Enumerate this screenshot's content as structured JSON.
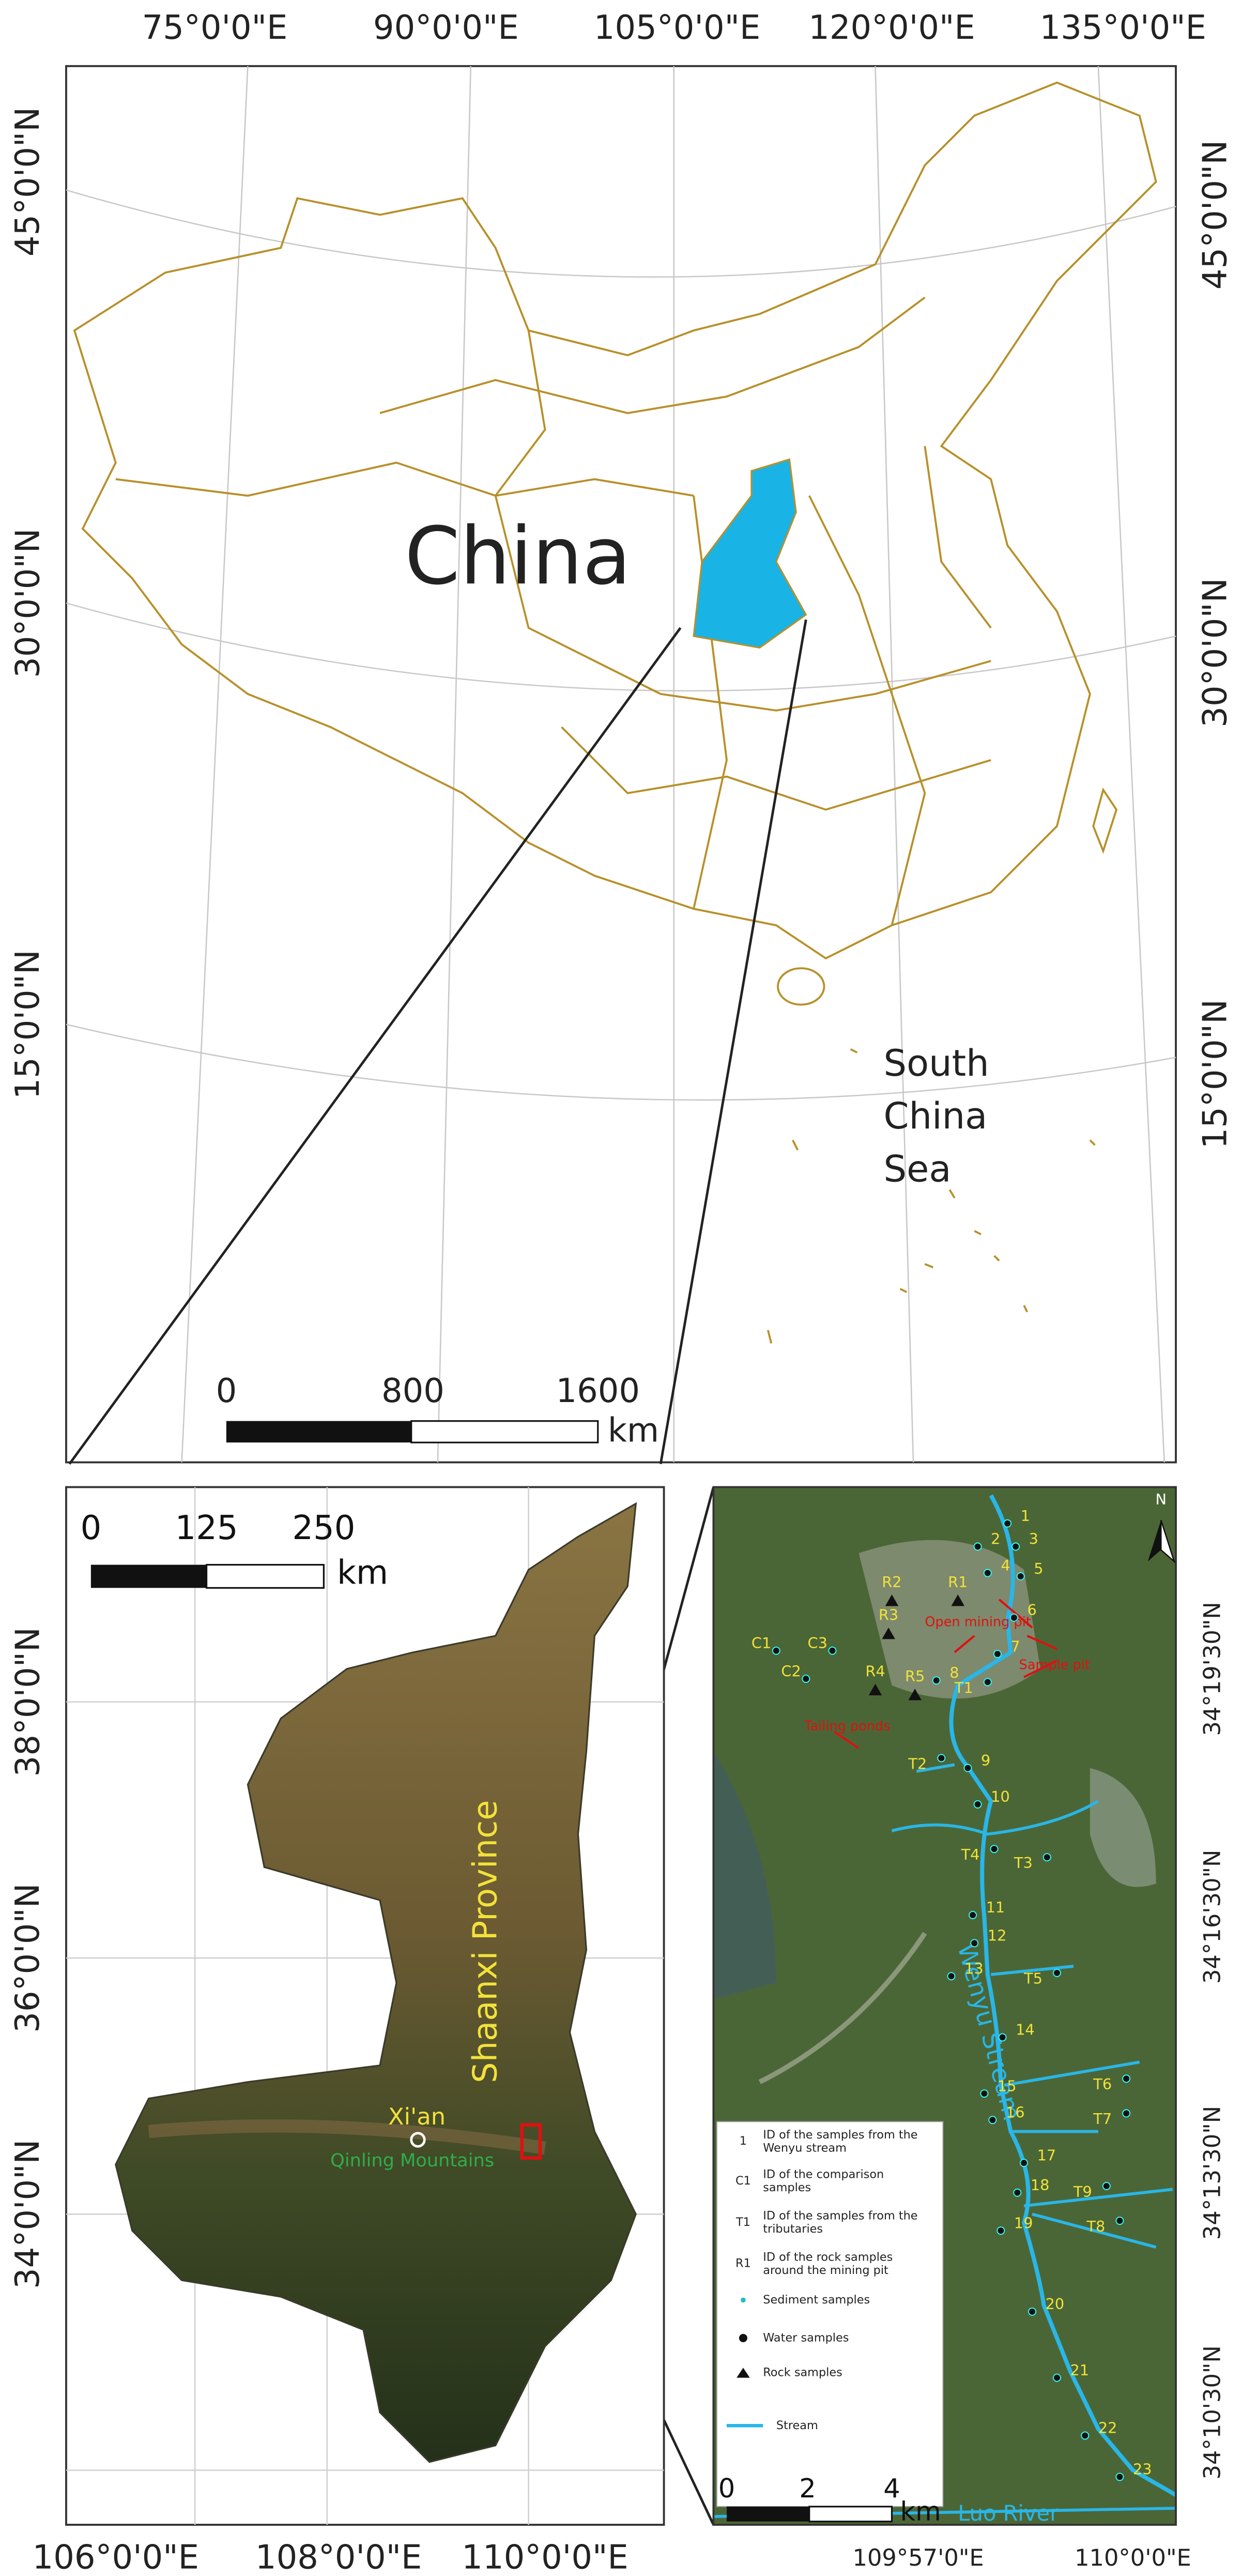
{
  "top_map": {
    "longitude_labels": [
      "75°0'0\"E",
      "90°0'0\"E",
      "105°0'0\"E",
      "120°0'0\"E",
      "135°0'0\"E"
    ],
    "latitude_labels_left": [
      "45°0'0\"N",
      "30°0'0\"N",
      "15°0'0\"N"
    ],
    "latitude_labels_right": [
      "45°0'0\"N",
      "30°0'0\"N",
      "15°0'0\"N"
    ],
    "country_label": "China",
    "sea_label": [
      "South",
      "China",
      "Sea"
    ],
    "scale": {
      "ticks": [
        "0",
        "800",
        "1600"
      ],
      "unit": "km"
    }
  },
  "province_map": {
    "latitude_labels": [
      "38°0'0\"N",
      "36°0'0\"N",
      "34°0'0\"N"
    ],
    "longitude_labels": [
      "106°0'0\"E",
      "108°0'0\"E",
      "110°0'0\"E"
    ],
    "scale": {
      "ticks": [
        "0",
        "125",
        "250"
      ],
      "unit": "km"
    },
    "province_label": "Shaanxi Province",
    "city_label": "Xi'an",
    "mountain_label": "Qinling Mountains"
  },
  "study_map": {
    "latitude_labels": [
      "34°19'30\"N",
      "34°16'30\"N",
      "34°13'30\"N",
      "34°10'30\"N"
    ],
    "longitude_labels": [
      "109°57'0\"E",
      "110°0'0\"E"
    ],
    "scale": {
      "ticks": [
        "0",
        "2",
        "4"
      ],
      "unit": "km"
    },
    "north_label": "N",
    "stream_label": "Wenyu Stream",
    "river_label": "Luo River",
    "annotations": [
      "Open mining pit",
      "Sample pit",
      "Tailing ponds"
    ],
    "stream_samples": [
      "1",
      "2",
      "3",
      "4",
      "5",
      "6",
      "7",
      "8",
      "9",
      "10",
      "11",
      "12",
      "13",
      "14",
      "15",
      "16",
      "17",
      "18",
      "19",
      "20",
      "21",
      "22",
      "23"
    ],
    "tributary_samples": [
      "T1",
      "T2",
      "T3",
      "T4",
      "T5",
      "T6",
      "T7",
      "T8",
      "T9"
    ],
    "rock_samples": [
      "R1",
      "R2",
      "R3",
      "R4",
      "R5"
    ],
    "comparison_samples": [
      "C1",
      "C2",
      "C3"
    ],
    "legend": [
      {
        "symbol": "1",
        "text": "ID of the samples  from the Wenyu stream"
      },
      {
        "symbol": "C1",
        "text": "ID of the comparison samples"
      },
      {
        "symbol": "T1",
        "text": "ID of the samples from the tributaries"
      },
      {
        "symbol": "R1",
        "text": "ID of the rock samples around the mining pit"
      },
      {
        "text": "Sediment samples"
      },
      {
        "text": "Water samples"
      },
      {
        "text": "Rock samples"
      },
      {
        "text": "Stream"
      }
    ]
  }
}
